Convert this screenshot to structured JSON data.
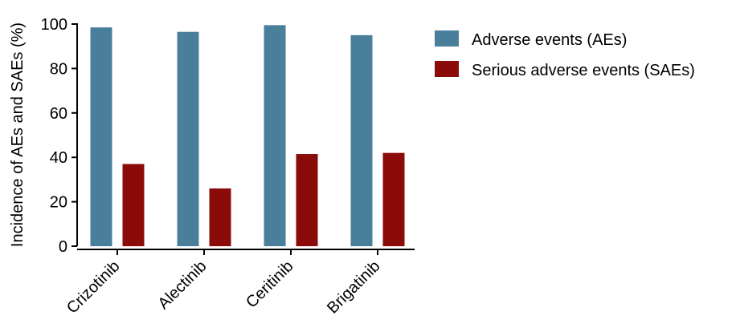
{
  "chart_data": {
    "type": "bar",
    "title": "",
    "xlabel": "",
    "ylabel": "Incidence of AEs and SAEs (%)",
    "ylim": [
      0,
      100
    ],
    "yticks": [
      0,
      20,
      40,
      60,
      80,
      100
    ],
    "categories": [
      "Crizotinib",
      "Alectinib",
      "Ceritinib",
      "Brigatinib"
    ],
    "series": [
      {
        "name": "Adverse events (AEs)",
        "color": "#4a7f9b",
        "values": [
          98.5,
          96.5,
          99.5,
          95
        ]
      },
      {
        "name": "Serious adverse events (SAEs)",
        "color": "#8b0a0a",
        "values": [
          37,
          26,
          41.5,
          42
        ]
      }
    ],
    "grid": false,
    "legend": "top-right"
  }
}
